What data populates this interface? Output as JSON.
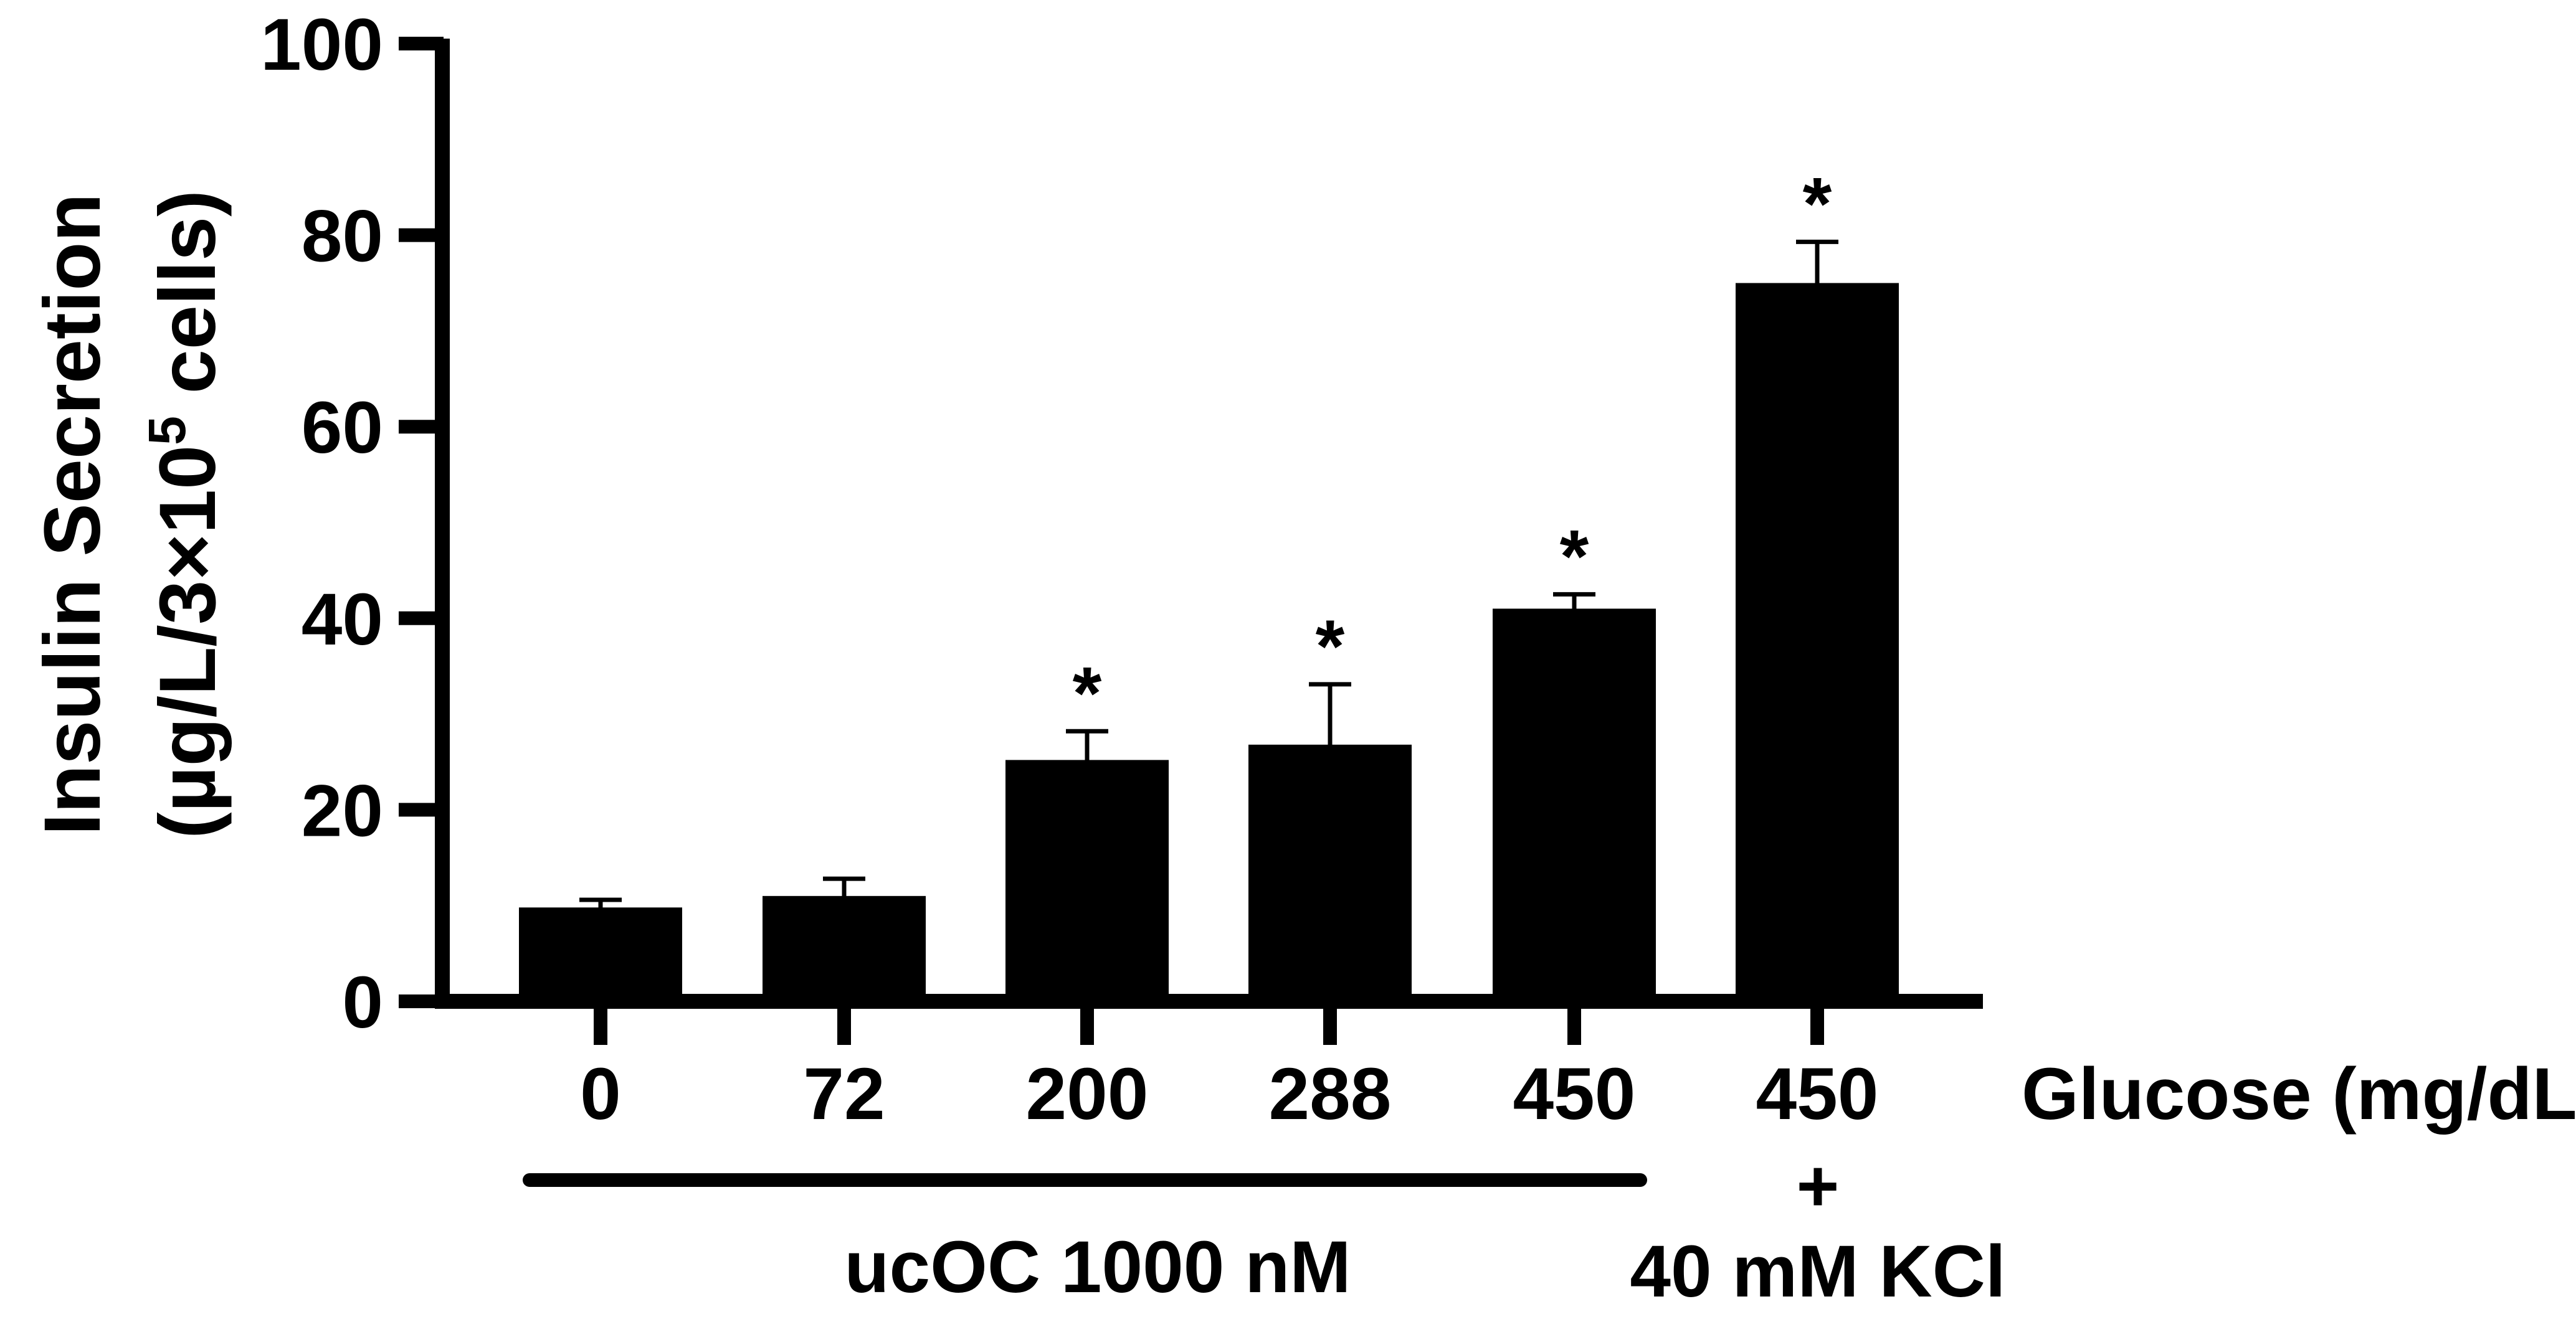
{
  "chart_data": {
    "type": "bar",
    "title": "",
    "ylabel_line1": "Insulin Secretion",
    "ylabel_line2_prefix": "(µg/L/3×10",
    "ylabel_line2_sup": "5",
    "ylabel_line2_suffix": " cells)",
    "xlabel": "Glucose (mg/dL)",
    "ylim": [
      0,
      100
    ],
    "yticks": [
      "0",
      "20",
      "40",
      "60",
      "80",
      "100"
    ],
    "categories": [
      "0",
      "72",
      "200",
      "288",
      "450",
      "450"
    ],
    "values": [
      9.8,
      11.0,
      25.2,
      26.8,
      41.0,
      75.0
    ],
    "errors": [
      0.8,
      1.8,
      3.0,
      6.3,
      1.5,
      4.3
    ],
    "significance": [
      "",
      "",
      "*",
      "*",
      "*",
      "*"
    ],
    "bar_color": "#000000",
    "group_label": "ucOC 1000 nM",
    "kcl_plus": "+",
    "kcl_label": "40 mM KCl"
  }
}
